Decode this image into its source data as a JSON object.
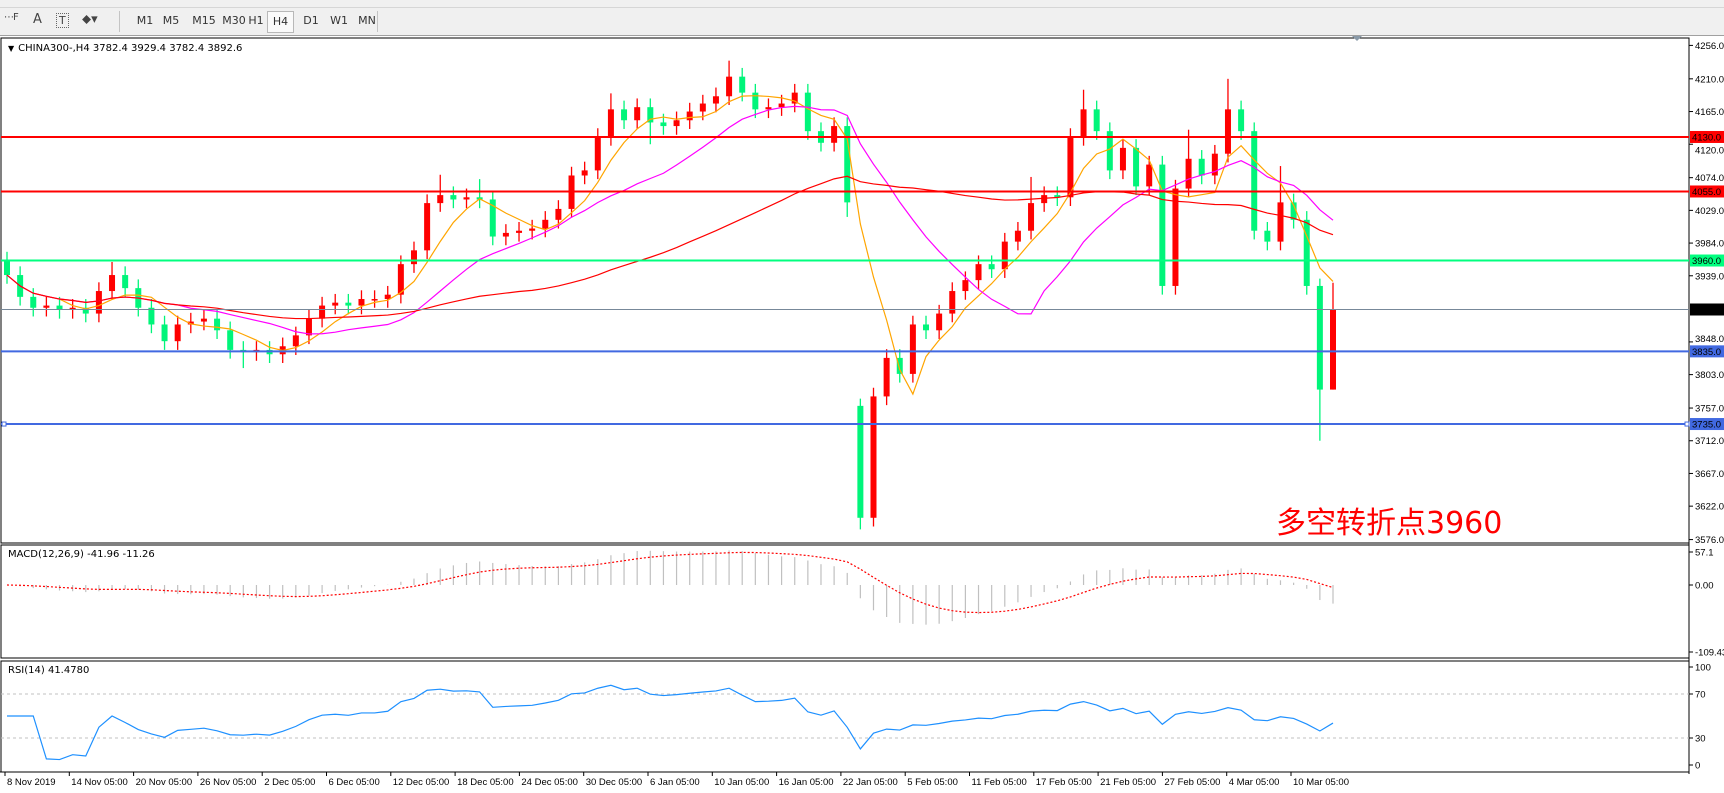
{
  "toolbar": {
    "timeframes": [
      "M1",
      "M5",
      "M15",
      "M30",
      "H1",
      "H4",
      "D1",
      "W1",
      "MN"
    ],
    "selected": "H4",
    "icons": [
      "fibo-fan-icon",
      "text-icon",
      "text-label-icon",
      "arrows-icon"
    ]
  },
  "chart": {
    "title": "CHINA300-,H4  3782.4 3929.4 3782.4 3892.6",
    "annotation": "多空转折点3960",
    "colors": {
      "bull": "#ff0000",
      "bear": "#00f57a",
      "ma_fast": "#ffa500",
      "ma_mid": "#ff00ff",
      "ma_slow": "#ff0000",
      "macd_hist": "#c0c0c0",
      "macd_signal": "#ff0000",
      "rsi": "#1e90ff"
    }
  },
  "chart_data": {
    "type": "candlestick",
    "symbol": "CHINA300-",
    "timeframe": "H4",
    "ylim": [
      3562,
      4269
    ],
    "y_ticks": [
      "4256.0",
      "4210.0",
      "4165.0",
      "4120.0",
      "4074.0",
      "4029.0",
      "3984.0",
      "3939.0",
      "3848.0",
      "3803.0",
      "3757.0",
      "3712.0",
      "3667.0",
      "3622.0",
      "3576.0"
    ],
    "y_tick_values": [
      4256,
      4210,
      4165,
      4120,
      4074,
      4029,
      3984,
      3939,
      3848,
      3803,
      3757,
      3712,
      3667,
      3622,
      3576
    ],
    "x_ticks": [
      "8 Nov 2019",
      "14 Nov 05:00",
      "20 Nov 05:00",
      "26 Nov 05:00",
      "2 Dec 05:00",
      "6 Dec 05:00",
      "12 Dec 05:00",
      "18 Dec 05:00",
      "24 Dec 05:00",
      "30 Dec 05:00",
      "6 Jan 05:00",
      "10 Jan 05:00",
      "16 Jan 05:00",
      "22 Jan 05:00",
      "5 Feb 05:00",
      "11 Feb 05:00",
      "17 Feb 05:00",
      "21 Feb 05:00",
      "27 Feb 05:00",
      "4 Mar 05:00",
      "10 Mar 05:00"
    ],
    "levels": [
      {
        "value": 4130.0,
        "label": "4130.0",
        "color": "#ff0000"
      },
      {
        "value": 4055.0,
        "label": "4055.0",
        "color": "#ff0000"
      },
      {
        "value": 3960.0,
        "label": "3960.0",
        "color": "#00ff7f"
      },
      {
        "value": 3892.6,
        "label": "3892.6",
        "color": "#778899",
        "bg": "#000000"
      },
      {
        "value": 3835.0,
        "label": "3835.0",
        "color": "#4169e1"
      },
      {
        "value": 3735.0,
        "label": "3735.0",
        "color": "#4169e1"
      }
    ],
    "candles": [
      [
        3960,
        3972,
        3928,
        3940
      ],
      [
        3940,
        3952,
        3898,
        3910
      ],
      [
        3910,
        3922,
        3883,
        3895
      ],
      [
        3895,
        3910,
        3883,
        3898
      ],
      [
        3898,
        3910,
        3880,
        3892
      ],
      [
        3892,
        3907,
        3880,
        3895
      ],
      [
        3895,
        3907,
        3875,
        3887
      ],
      [
        3887,
        3930,
        3875,
        3918
      ],
      [
        3918,
        3958,
        3906,
        3940
      ],
      [
        3940,
        3952,
        3910,
        3922
      ],
      [
        3922,
        3934,
        3883,
        3895
      ],
      [
        3895,
        3907,
        3860,
        3872
      ],
      [
        3872,
        3884,
        3837,
        3849
      ],
      [
        3849,
        3884,
        3837,
        3872
      ],
      [
        3872,
        3888,
        3860,
        3876
      ],
      [
        3876,
        3892,
        3864,
        3880
      ],
      [
        3880,
        3892,
        3852,
        3864
      ],
      [
        3864,
        3876,
        3825,
        3837
      ],
      [
        3837,
        3849,
        3812,
        3834
      ],
      [
        3834,
        3849,
        3822,
        3837
      ],
      [
        3837,
        3849,
        3819,
        3831
      ],
      [
        3831,
        3854,
        3819,
        3842
      ],
      [
        3842,
        3869,
        3830,
        3857
      ],
      [
        3857,
        3892,
        3845,
        3880
      ],
      [
        3880,
        3910,
        3868,
        3898
      ],
      [
        3898,
        3914,
        3886,
        3902
      ],
      [
        3902,
        3914,
        3886,
        3898
      ],
      [
        3898,
        3919,
        3886,
        3907
      ],
      [
        3907,
        3919,
        3895,
        3907
      ],
      [
        3907,
        3925,
        3895,
        3913
      ],
      [
        3913,
        3967,
        3901,
        3955
      ],
      [
        3955,
        3986,
        3943,
        3974
      ],
      [
        3974,
        4051,
        3962,
        4039
      ],
      [
        4039,
        4078,
        4027,
        4050
      ],
      [
        4050,
        4062,
        4032,
        4044
      ],
      [
        4044,
        4059,
        4032,
        4047
      ],
      [
        4047,
        4072,
        4032,
        4044
      ],
      [
        4044,
        4056,
        3981,
        3993
      ],
      [
        3993,
        4010,
        3981,
        3998
      ],
      [
        3998,
        4013,
        3986,
        4001
      ],
      [
        4001,
        4016,
        3989,
        4004
      ],
      [
        4004,
        4028,
        3992,
        4016
      ],
      [
        4016,
        4043,
        4004,
        4031
      ],
      [
        4031,
        4089,
        4019,
        4077
      ],
      [
        4077,
        4096,
        4065,
        4084
      ],
      [
        4084,
        4142,
        4072,
        4130
      ],
      [
        4130,
        4190,
        4118,
        4168
      ],
      [
        4168,
        4180,
        4141,
        4153
      ],
      [
        4153,
        4183,
        4141,
        4171
      ],
      [
        4171,
        4183,
        4120,
        4150
      ],
      [
        4150,
        4162,
        4133,
        4145
      ],
      [
        4145,
        4165,
        4133,
        4153
      ],
      [
        4153,
        4177,
        4141,
        4165
      ],
      [
        4165,
        4188,
        4153,
        4176
      ],
      [
        4176,
        4198,
        4164,
        4186
      ],
      [
        4186,
        4235,
        4174,
        4213
      ],
      [
        4213,
        4225,
        4179,
        4191
      ],
      [
        4191,
        4203,
        4156,
        4168
      ],
      [
        4168,
        4183,
        4156,
        4171
      ],
      [
        4171,
        4188,
        4159,
        4176
      ],
      [
        4176,
        4203,
        4164,
        4191
      ],
      [
        4191,
        4203,
        4126,
        4138
      ],
      [
        4138,
        4150,
        4110,
        4122
      ],
      [
        4122,
        4157,
        4110,
        4145
      ],
      [
        4145,
        4157,
        4020,
        4040
      ],
      [
        3760,
        3770,
        3590,
        3606
      ],
      [
        3606,
        3785,
        3594,
        3773
      ],
      [
        3773,
        3838,
        3761,
        3826
      ],
      [
        3826,
        3838,
        3792,
        3804
      ],
      [
        3804,
        3884,
        3792,
        3872
      ],
      [
        3872,
        3884,
        3852,
        3864
      ],
      [
        3864,
        3899,
        3852,
        3887
      ],
      [
        3887,
        3930,
        3875,
        3918
      ],
      [
        3918,
        3945,
        3906,
        3933
      ],
      [
        3933,
        3967,
        3921,
        3955
      ],
      [
        3955,
        3967,
        3936,
        3948
      ],
      [
        3948,
        3998,
        3936,
        3986
      ],
      [
        3986,
        4013,
        3974,
        4001
      ],
      [
        4001,
        4075,
        3989,
        4039
      ],
      [
        4039,
        4062,
        4027,
        4050
      ],
      [
        4050,
        4062,
        4035,
        4047
      ],
      [
        4047,
        4142,
        4035,
        4130
      ],
      [
        4130,
        4195,
        4118,
        4168
      ],
      [
        4168,
        4180,
        4126,
        4138
      ],
      [
        4138,
        4150,
        4072,
        4084
      ],
      [
        4084,
        4127,
        4072,
        4115
      ],
      [
        4115,
        4127,
        4050,
        4062
      ],
      [
        4062,
        4104,
        4050,
        4092
      ],
      [
        4092,
        4104,
        3913,
        3925
      ],
      [
        3925,
        4071,
        3913,
        4059
      ],
      [
        4059,
        4140,
        4047,
        4100
      ],
      [
        4100,
        4112,
        4065,
        4077
      ],
      [
        4077,
        4119,
        4065,
        4107
      ],
      [
        4107,
        4210,
        4095,
        4168
      ],
      [
        4168,
        4180,
        4126,
        4138
      ],
      [
        4138,
        4150,
        3989,
        4001
      ],
      [
        4001,
        4013,
        3974,
        3986
      ],
      [
        3986,
        4090,
        3974,
        4040
      ],
      [
        4040,
        4052,
        4004,
        4016
      ],
      [
        4016,
        4028,
        3913,
        3925
      ],
      [
        3925,
        3935,
        3712,
        3782.4
      ],
      [
        3782.4,
        3929.4,
        3782.4,
        3892.6
      ]
    ],
    "macd": {
      "label": "MACD(12,26,9) -41.96 -11.26",
      "ticks": [
        "57.1",
        "0.00",
        "-109.43"
      ],
      "tick_values": [
        57.1,
        0,
        -109.43
      ]
    },
    "rsi": {
      "label": "RSI(14) 41.4780",
      "ticks": [
        "100",
        "70",
        "30",
        "0"
      ],
      "tick_values": [
        100,
        70,
        30,
        0
      ],
      "levels": [
        70,
        30
      ]
    }
  }
}
